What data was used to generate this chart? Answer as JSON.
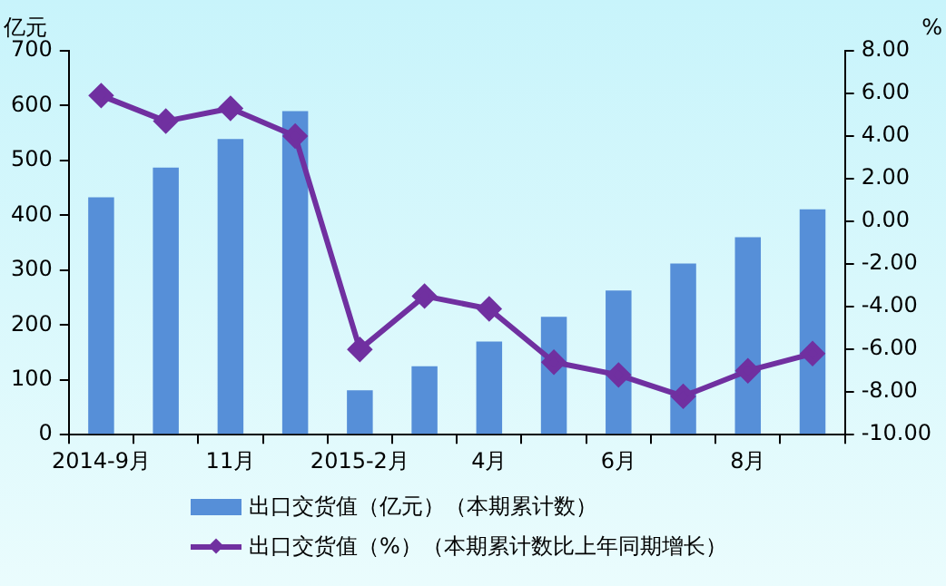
{
  "chart_data": {
    "type": "bar",
    "categories": [
      "2014-9月",
      null,
      "11月",
      null,
      "2015-2月",
      null,
      "4月",
      null,
      "6月",
      null,
      "8月",
      null
    ],
    "ylabel": "亿元",
    "y2label": "%",
    "series": [
      {
        "name": "出口交货值（亿元）（本期累计数）",
        "color": "#568fd8",
        "values": [
          433,
          487,
          539,
          590,
          81,
          125,
          170,
          215,
          263,
          312,
          360,
          411
        ]
      },
      {
        "name": "出口交货值（%）（本期累计数比上年同期增长）",
        "type": "line",
        "axis": "y2",
        "color": "#7030a0",
        "marker": "diamond",
        "values": [
          5.9,
          4.7,
          5.3,
          4.0,
          -6.0,
          -3.5,
          -4.1,
          -6.6,
          -7.2,
          -8.2,
          -7.0,
          -6.2
        ]
      }
    ],
    "ylim": [
      0,
      700
    ],
    "yticks": [
      0,
      100,
      200,
      300,
      400,
      500,
      600,
      700
    ],
    "y2lim": [
      -10,
      8
    ],
    "y2ticks": [
      {
        "value": -10,
        "label": "-10.00"
      },
      {
        "value": -8,
        "label": "-8.00"
      },
      {
        "value": -6,
        "label": "-6.00"
      },
      {
        "value": -4,
        "label": "-4.00"
      },
      {
        "value": -2,
        "label": "-2.00"
      },
      {
        "value": 0,
        "label": "0.00"
      },
      {
        "value": 2,
        "label": "2.00"
      },
      {
        "value": 4,
        "label": "4.00"
      },
      {
        "value": 6,
        "label": "6.00"
      },
      {
        "value": 8,
        "label": "8.00"
      }
    ],
    "grid": false,
    "legend": "bottom"
  }
}
